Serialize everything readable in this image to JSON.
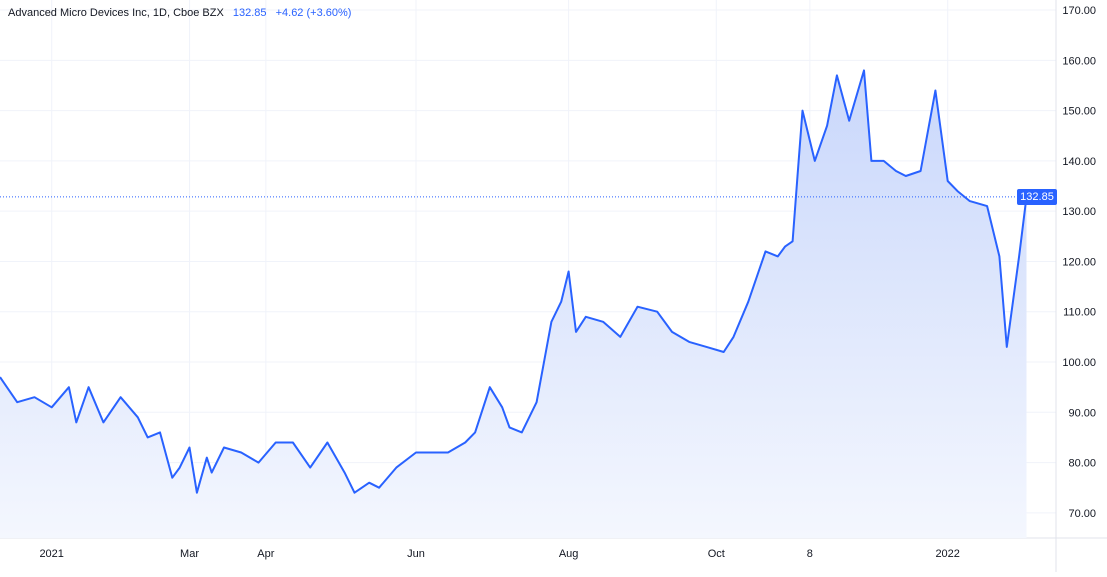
{
  "legend": {
    "symbol": "Advanced Micro Devices Inc, 1D, Cboe BZX",
    "last": "132.85",
    "change": "+4.62 (+3.60%)"
  },
  "colors": {
    "line": "#2962ff",
    "fill_top": "#c9d7fb",
    "fill_bottom": "#f4f7fe",
    "grid": "#f0f3fa",
    "axis_text": "#131722",
    "price_line": "#2962ff"
  },
  "chart_data": {
    "type": "area",
    "title": "Advanced Micro Devices Inc, 1D, Cboe BZX",
    "last_price": 132.85,
    "ylim": [
      65,
      172
    ],
    "y_ticks": [
      "70.00",
      "80.00",
      "90.00",
      "100.00",
      "110.00",
      "120.00",
      "130.00",
      "140.00",
      "150.00",
      "160.00",
      "170.00"
    ],
    "x_ticks": [
      {
        "label": "2021",
        "x": "2021-01-04"
      },
      {
        "label": "Mar",
        "x": "2021-03-01"
      },
      {
        "label": "Apr",
        "x": "2021-04-01"
      },
      {
        "label": "Jun",
        "x": "2021-06-01"
      },
      {
        "label": "Aug",
        "x": "2021-08-02"
      },
      {
        "label": "Oct",
        "x": "2021-10-01"
      },
      {
        "label": "8",
        "x": "2021-11-08"
      },
      {
        "label": "2022",
        "x": "2022-01-03"
      }
    ],
    "xlim": [
      "2020-12-14",
      "2022-02-16"
    ],
    "grid": true,
    "series": [
      {
        "x": [
          "2020-12-14",
          "2020-12-21",
          "2020-12-28",
          "2021-01-04",
          "2021-01-11",
          "2021-01-14",
          "2021-01-19",
          "2021-01-25",
          "2021-02-01",
          "2021-02-08",
          "2021-02-12",
          "2021-02-17",
          "2021-02-22",
          "2021-02-25",
          "2021-03-01",
          "2021-03-04",
          "2021-03-08",
          "2021-03-10",
          "2021-03-15",
          "2021-03-22",
          "2021-03-29",
          "2021-04-05",
          "2021-04-12",
          "2021-04-19",
          "2021-04-26",
          "2021-05-03",
          "2021-05-07",
          "2021-05-13",
          "2021-05-17",
          "2021-05-24",
          "2021-06-01",
          "2021-06-07",
          "2021-06-14",
          "2021-06-21",
          "2021-06-25",
          "2021-07-01",
          "2021-07-06",
          "2021-07-09",
          "2021-07-14",
          "2021-07-20",
          "2021-07-26",
          "2021-07-30",
          "2021-08-02",
          "2021-08-05",
          "2021-08-09",
          "2021-08-16",
          "2021-08-23",
          "2021-08-30",
          "2021-09-07",
          "2021-09-13",
          "2021-09-20",
          "2021-09-27",
          "2021-10-04",
          "2021-10-08",
          "2021-10-14",
          "2021-10-21",
          "2021-10-26",
          "2021-10-29",
          "2021-11-01",
          "2021-11-03",
          "2021-11-05",
          "2021-11-10",
          "2021-11-15",
          "2021-11-19",
          "2021-11-24",
          "2021-11-30",
          "2021-12-03",
          "2021-12-08",
          "2021-12-13",
          "2021-12-17",
          "2021-12-23",
          "2021-12-29",
          "2022-01-03",
          "2022-01-07",
          "2022-01-12",
          "2022-01-19",
          "2022-01-24",
          "2022-01-27",
          "2022-02-01",
          "2022-02-04"
        ],
        "values": [
          97,
          92,
          93,
          91,
          95,
          88,
          95,
          88,
          93,
          89,
          85,
          86,
          77,
          79,
          83,
          74,
          81,
          78,
          83,
          82,
          80,
          84,
          84,
          79,
          84,
          78,
          74,
          76,
          75,
          79,
          82,
          82,
          82,
          84,
          86,
          95,
          91,
          87,
          86,
          92,
          108,
          112,
          118,
          106,
          109,
          108,
          105,
          111,
          110,
          106,
          104,
          103,
          102,
          105,
          112,
          122,
          121,
          123,
          124,
          137,
          150,
          140,
          147,
          157,
          148,
          158,
          140,
          140,
          138,
          137,
          138,
          154,
          136,
          134,
          132,
          131,
          121,
          103,
          121,
          132.85
        ]
      }
    ]
  }
}
